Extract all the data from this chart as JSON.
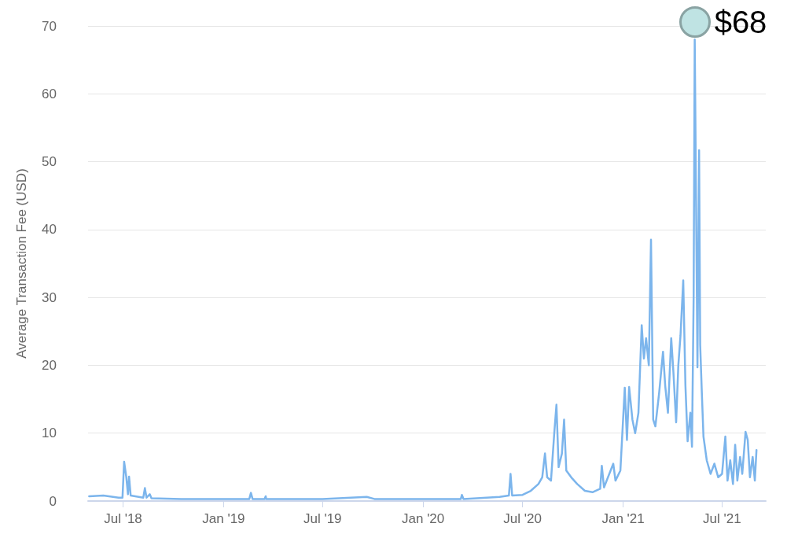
{
  "chart_data": {
    "type": "line",
    "ylabel": "Average Transaction Fee (USD)",
    "x": [
      "2018-04-30",
      "2018-05-26",
      "2018-06-23",
      "2018-06-30",
      "2018-07-03",
      "2018-07-07",
      "2018-07-10",
      "2018-07-12",
      "2018-07-15",
      "2018-08-07",
      "2018-08-10",
      "2018-08-13",
      "2018-08-19",
      "2018-08-22",
      "2018-10-15",
      "2019-01-01",
      "2019-02-17",
      "2019-02-20",
      "2019-02-23",
      "2019-03-17",
      "2019-03-19",
      "2019-03-20",
      "2019-07-01",
      "2019-09-20",
      "2019-10-04",
      "2020-01-01",
      "2020-03-10",
      "2020-03-12",
      "2020-03-15",
      "2020-05-20",
      "2020-06-06",
      "2020-06-09",
      "2020-06-12",
      "2020-07-01",
      "2020-07-16",
      "2020-07-30",
      "2020-08-06",
      "2020-08-11",
      "2020-08-15",
      "2020-08-22",
      "2020-08-28",
      "2020-09-01",
      "2020-09-05",
      "2020-09-11",
      "2020-09-15",
      "2020-09-19",
      "2020-09-28",
      "2020-10-09",
      "2020-10-23",
      "2020-11-06",
      "2020-11-20",
      "2020-11-23",
      "2020-11-27",
      "2020-12-14",
      "2020-12-18",
      "2020-12-27",
      "2021-01-04",
      "2021-01-08",
      "2021-01-12",
      "2021-01-18",
      "2021-01-23",
      "2021-01-29",
      "2021-02-04",
      "2021-02-08",
      "2021-02-12",
      "2021-02-17",
      "2021-02-21",
      "2021-02-25",
      "2021-03-01",
      "2021-03-08",
      "2021-03-15",
      "2021-03-19",
      "2021-03-24",
      "2021-03-30",
      "2021-04-03",
      "2021-04-08",
      "2021-04-12",
      "2021-04-16",
      "2021-04-21",
      "2021-04-25",
      "2021-04-29",
      "2021-05-04",
      "2021-05-07",
      "2021-05-10",
      "2021-05-12",
      "2021-05-17",
      "2021-05-20",
      "2021-05-22",
      "2021-05-25",
      "2021-05-28",
      "2021-06-03",
      "2021-06-10",
      "2021-06-17",
      "2021-06-24",
      "2021-07-01",
      "2021-07-07",
      "2021-07-11",
      "2021-07-16",
      "2021-07-21",
      "2021-07-25",
      "2021-07-29",
      "2021-08-03",
      "2021-08-07",
      "2021-08-13",
      "2021-08-17",
      "2021-08-21",
      "2021-08-26",
      "2021-08-30",
      "2021-09-02"
    ],
    "series": [
      {
        "color": "#7cb5ec",
        "values": [
          0.7,
          0.8,
          0.5,
          0.5,
          5.8,
          3.5,
          1.0,
          3.6,
          0.8,
          0.5,
          1.9,
          0.5,
          1.0,
          0.4,
          0.3,
          0.3,
          0.3,
          1.2,
          0.3,
          0.3,
          0.7,
          0.3,
          0.3,
          0.6,
          0.3,
          0.3,
          0.3,
          0.9,
          0.3,
          0.6,
          0.8,
          4.0,
          0.8,
          0.9,
          1.5,
          2.5,
          3.5,
          7.0,
          3.5,
          3.0,
          10,
          14.2,
          5,
          7,
          12,
          4.5,
          3.5,
          2.5,
          1.5,
          1.3,
          1.8,
          5.2,
          2,
          5.5,
          3,
          4.5,
          16.7,
          9,
          16.8,
          12,
          10,
          13,
          25.9,
          21,
          24,
          20,
          38.5,
          12,
          11,
          16,
          22,
          17,
          13,
          24,
          19,
          11.6,
          20,
          24.4,
          32.5,
          17,
          8.8,
          13,
          8,
          30,
          68,
          19.7,
          51.7,
          23,
          16,
          9.5,
          6,
          4,
          5.5,
          3.5,
          4,
          9.5,
          3,
          6,
          2.5,
          8.3,
          3,
          6.5,
          4,
          10.2,
          9,
          3.5,
          6.5,
          3,
          7.5
        ]
      }
    ],
    "xlim": [
      "2018-04-28",
      "2021-09-19"
    ],
    "xticks": [
      {
        "value": "2018-07-01",
        "label": "Jul '18"
      },
      {
        "value": "2019-01-01",
        "label": "Jan '19"
      },
      {
        "value": "2019-07-01",
        "label": "Jul '19"
      },
      {
        "value": "2020-01-01",
        "label": "Jan '20"
      },
      {
        "value": "2020-07-01",
        "label": "Jul '20"
      },
      {
        "value": "2021-01-01",
        "label": "Jan '21"
      },
      {
        "value": "2021-07-01",
        "label": "Jul '21"
      }
    ],
    "ylim": [
      0,
      70
    ],
    "yticks": [
      0,
      10,
      20,
      30,
      40,
      50,
      60,
      70
    ],
    "grid": "y",
    "marker": "none",
    "line_style": "solid",
    "annotations": [
      {
        "text": "$68",
        "x": "2021-05-12",
        "y": 68
      }
    ]
  }
}
